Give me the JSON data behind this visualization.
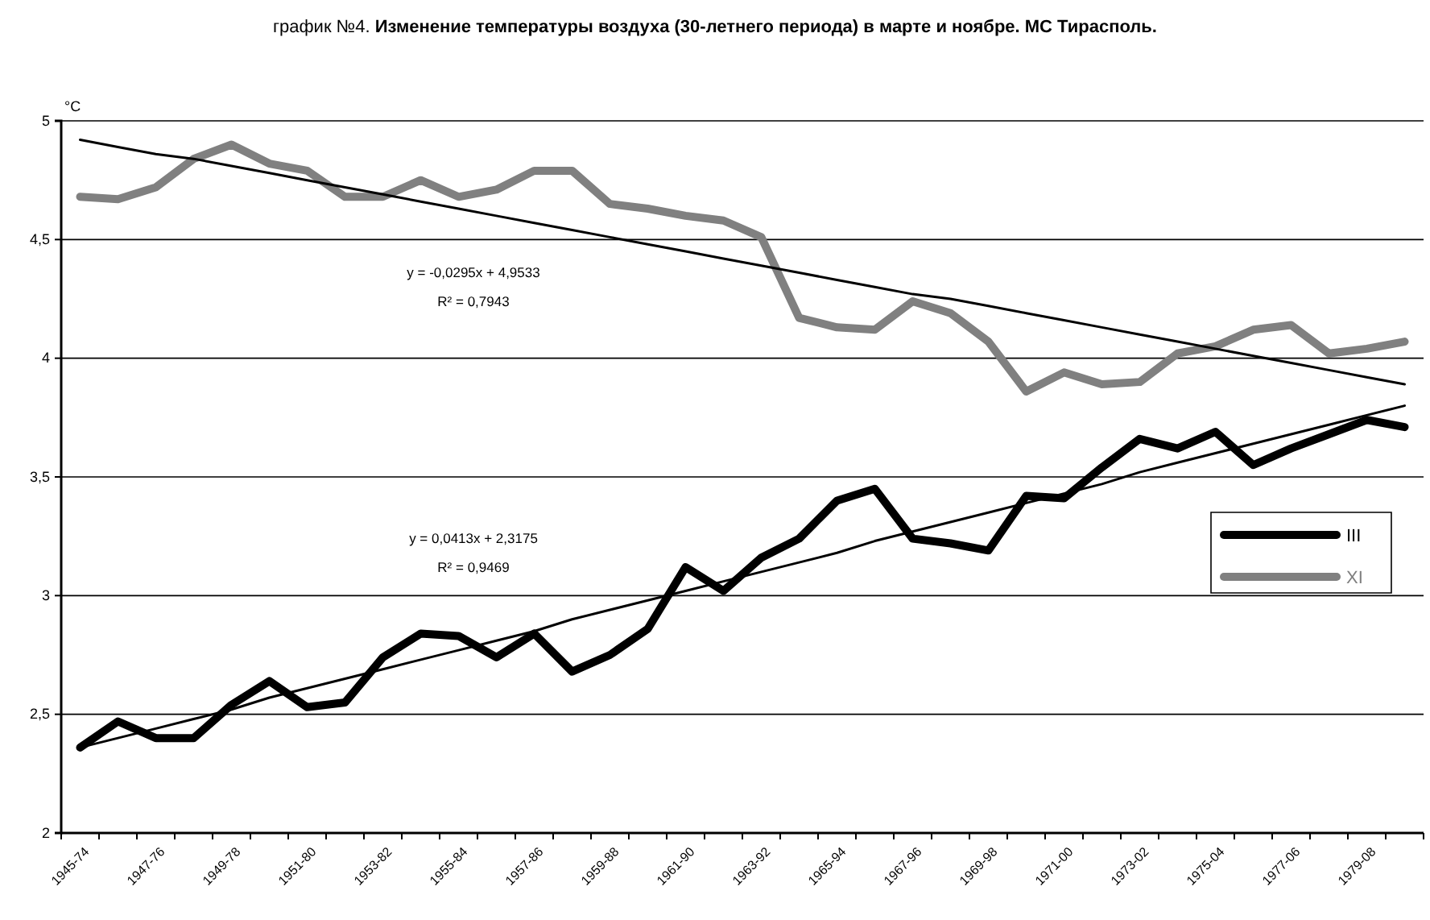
{
  "chart_data": {
    "type": "line",
    "title": "график №4. Изменение температуры воздуха (30-летнего периода) в марте и ноябре. МС Тирасполь.",
    "ylabel": "°C",
    "categories": [
      "1945-74",
      null,
      "1947-76",
      null,
      "1949-78",
      null,
      "1951-80",
      null,
      "1953-82",
      null,
      "1955-84",
      null,
      "1957-86",
      null,
      "1959-88",
      null,
      "1961-90",
      null,
      "1963-92",
      null,
      "1965-94",
      null,
      "1967-96",
      null,
      "1969-98",
      null,
      "1971-00",
      null,
      "1973-02",
      null,
      "1975-04",
      null,
      "1977-06",
      null,
      "1979-08",
      null
    ],
    "series": [
      {
        "name": "III",
        "color": "#000000",
        "values": [
          2.36,
          2.47,
          2.4,
          2.4,
          2.54,
          2.64,
          2.53,
          2.55,
          2.74,
          2.84,
          2.83,
          2.74,
          2.84,
          2.68,
          2.75,
          2.86,
          3.12,
          3.02,
          3.16,
          3.24,
          3.4,
          3.45,
          3.24,
          3.22,
          3.19,
          3.42,
          3.41,
          3.54,
          3.66,
          3.62,
          3.69,
          3.55,
          3.62,
          3.68,
          3.74,
          3.71
        ]
      },
      {
        "name": "XI",
        "color": "#808080",
        "values": [
          4.68,
          4.67,
          4.72,
          4.84,
          4.9,
          4.82,
          4.79,
          4.68,
          4.68,
          4.75,
          4.68,
          4.71,
          4.79,
          4.79,
          4.65,
          4.63,
          4.6,
          4.58,
          4.51,
          4.17,
          4.13,
          4.12,
          4.24,
          4.19,
          4.07,
          3.86,
          3.94,
          3.89,
          3.9,
          4.02,
          4.05,
          4.12,
          4.14,
          4.02,
          4.04,
          4.07
        ]
      },
      {
        "color": "#000000",
        "values": [
          2.36,
          2.4,
          2.44,
          2.48,
          2.52,
          2.57,
          2.61,
          2.65,
          2.69,
          2.73,
          2.77,
          2.81,
          2.85,
          2.9,
          2.94,
          2.98,
          3.02,
          3.06,
          3.1,
          3.14,
          3.18,
          3.23,
          3.27,
          3.31,
          3.35,
          3.39,
          3.43,
          3.47,
          3.52,
          3.56,
          3.6,
          3.64,
          3.68,
          3.72,
          3.76,
          3.8
        ]
      },
      {
        "color": "#000000",
        "values": [
          4.92,
          4.89,
          4.86,
          4.84,
          4.81,
          4.78,
          4.75,
          4.72,
          4.69,
          4.66,
          4.63,
          4.6,
          4.57,
          4.54,
          4.51,
          4.48,
          4.45,
          4.42,
          4.39,
          4.36,
          4.33,
          4.3,
          4.27,
          4.25,
          4.22,
          4.19,
          4.16,
          4.13,
          4.1,
          4.07,
          4.04,
          4.01,
          3.98,
          3.95,
          3.92,
          3.89
        ]
      }
    ],
    "ylim": [
      2,
      5
    ],
    "yticks": [
      2,
      {
        "value": 2.5,
        "label": "2,5"
      },
      3,
      {
        "value": 3.5,
        "label": "3,5"
      },
      4,
      {
        "value": 4.5,
        "label": "4,5"
      },
      5
    ],
    "grid": "y",
    "legend": "right",
    "marker": "none",
    "line_style": "solid",
    "annotations": [
      "y = -0,0295x + 4,9533",
      "R² = 0,7943",
      "y = 0,0413x + 2,3175",
      "R² = 0,9469"
    ]
  }
}
